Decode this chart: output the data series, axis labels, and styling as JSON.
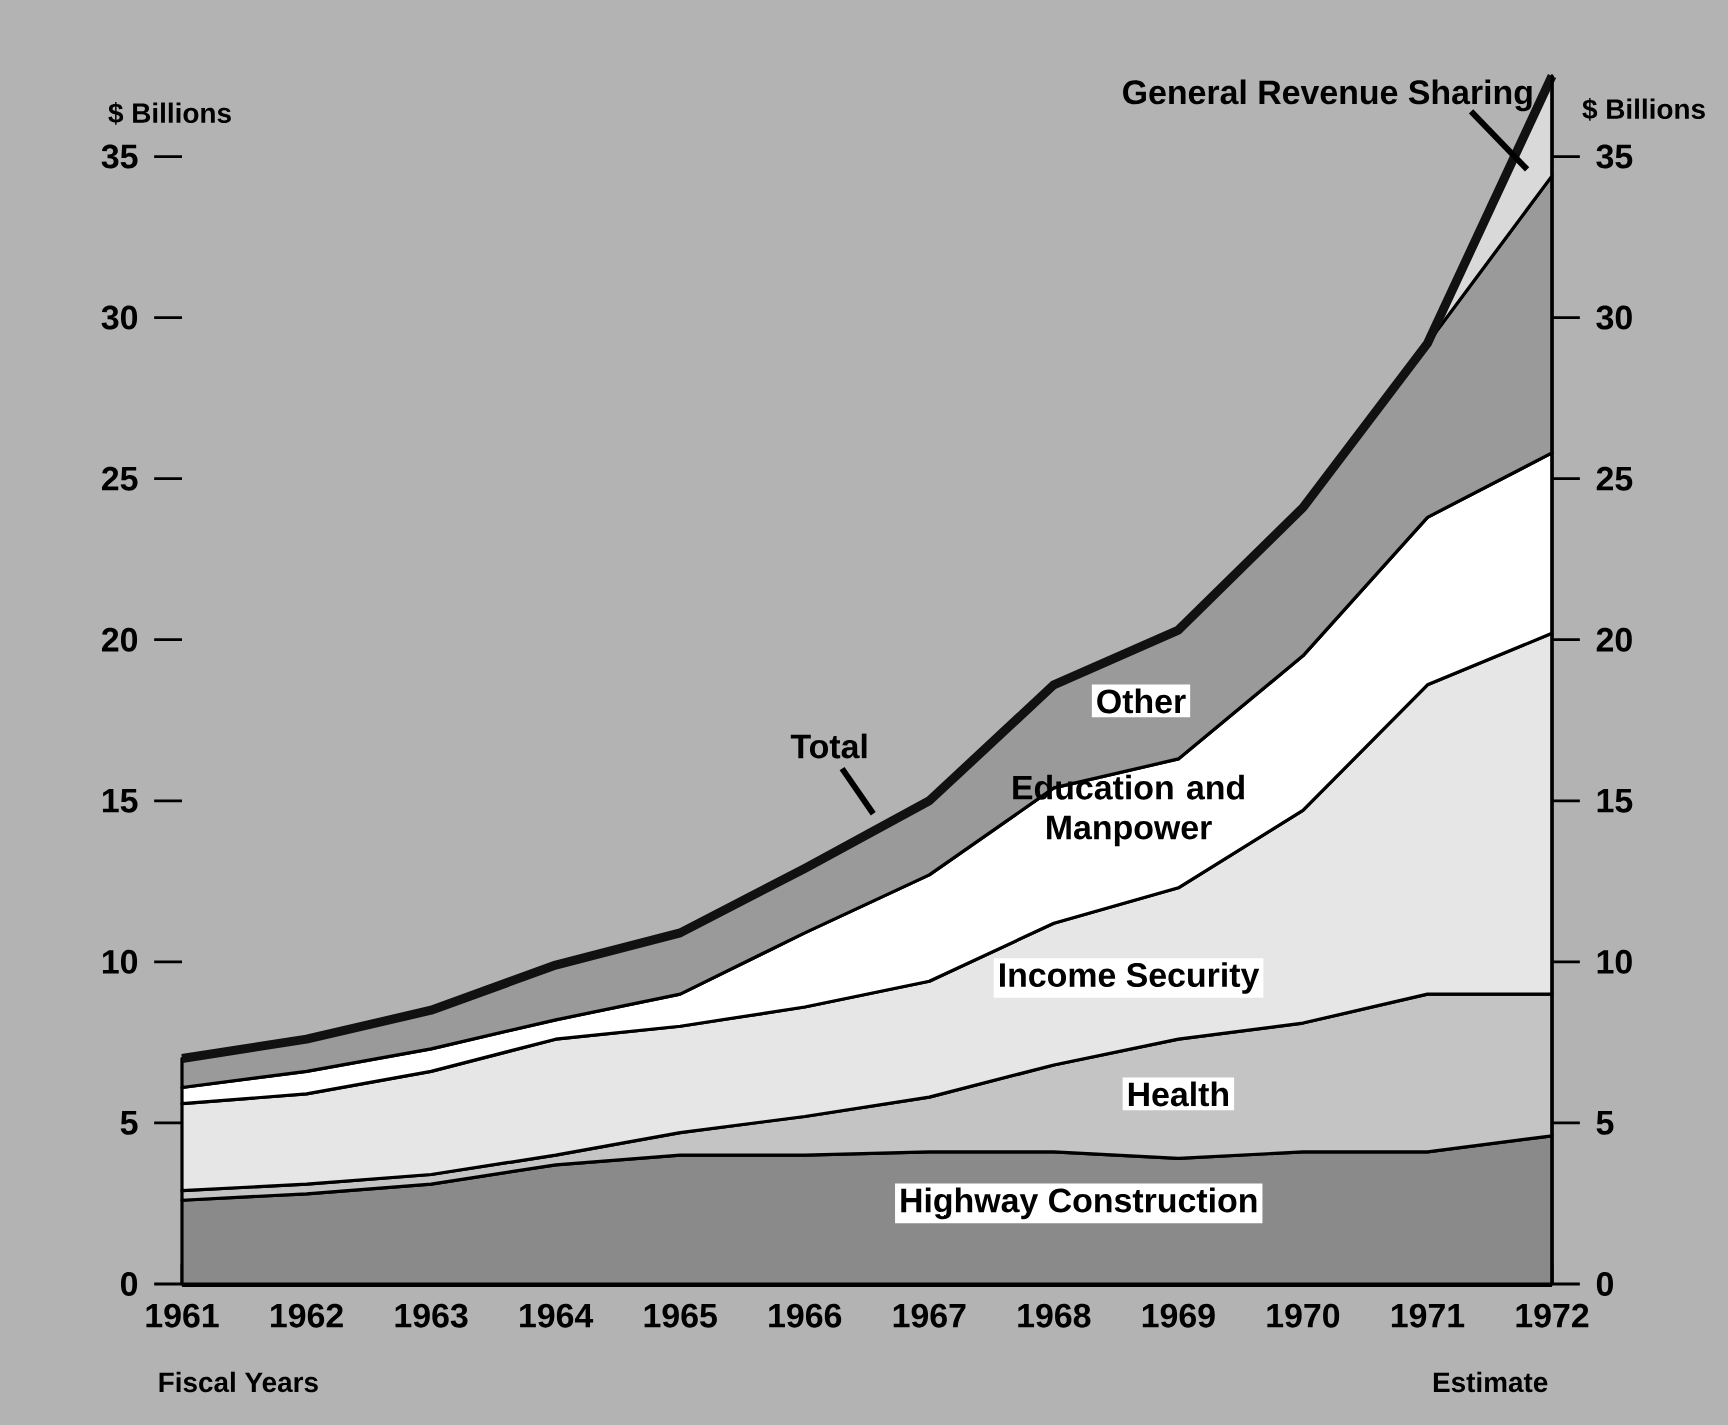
{
  "chart_data": {
    "type": "area",
    "stacked": true,
    "xlabel": "Fiscal Years",
    "ylabel": "$ Billions",
    "y2label": "$ Billions",
    "x": [
      1961,
      1962,
      1963,
      1964,
      1965,
      1966,
      1967,
      1968,
      1969,
      1970,
      1971,
      1972
    ],
    "xlim": [
      1961,
      1972
    ],
    "xticks": [
      1961,
      1962,
      1963,
      1964,
      1965,
      1966,
      1967,
      1968,
      1969,
      1970,
      1971,
      1972
    ],
    "ylim": [
      0,
      37.5
    ],
    "yticks": [
      0,
      5,
      10,
      15,
      20,
      25,
      30,
      35
    ],
    "y2lim": [
      0,
      37.5
    ],
    "y2ticks": [
      0,
      5,
      10,
      15,
      20,
      25,
      30,
      35
    ],
    "series": [
      {
        "name": "Highway Construction",
        "color": "#8a8a8a",
        "values": [
          2.6,
          2.8,
          3.1,
          3.7,
          4.0,
          4.0,
          4.1,
          4.1,
          3.9,
          4.1,
          4.1,
          4.6
        ]
      },
      {
        "name": "Health",
        "color": "#c4c4c4",
        "values": [
          0.3,
          0.3,
          0.3,
          0.3,
          0.7,
          1.2,
          1.7,
          2.7,
          3.7,
          4.0,
          4.9,
          4.4
        ]
      },
      {
        "name": "Income Security",
        "color": "#e6e6e6",
        "values": [
          2.7,
          2.8,
          3.2,
          3.6,
          3.3,
          3.4,
          3.6,
          4.4,
          4.7,
          6.6,
          9.6,
          11.2
        ]
      },
      {
        "name": "Education and Manpower",
        "color": "#ffffff",
        "values": [
          0.5,
          0.7,
          0.7,
          0.6,
          1.0,
          2.3,
          3.3,
          4.2,
          4.0,
          4.8,
          5.2,
          5.6
        ]
      },
      {
        "name": "Other",
        "color": "#9a9a9a",
        "values": [
          0.9,
          1.0,
          1.2,
          1.7,
          1.9,
          2.0,
          2.3,
          3.2,
          4.0,
          4.6,
          5.4,
          8.6
        ]
      },
      {
        "name": "General Revenue Sharing",
        "color": "#d9d9d9",
        "values": [
          null,
          null,
          null,
          null,
          null,
          null,
          null,
          null,
          null,
          null,
          0,
          3.1
        ]
      },
      {
        "name": "Total",
        "type": "line",
        "color": "#111111",
        "values": [
          7.0,
          7.6,
          8.5,
          9.9,
          10.9,
          12.9,
          15.0,
          18.6,
          20.3,
          24.1,
          29.2,
          37.5
        ]
      }
    ],
    "annotations": [
      "Estimate"
    ]
  }
}
